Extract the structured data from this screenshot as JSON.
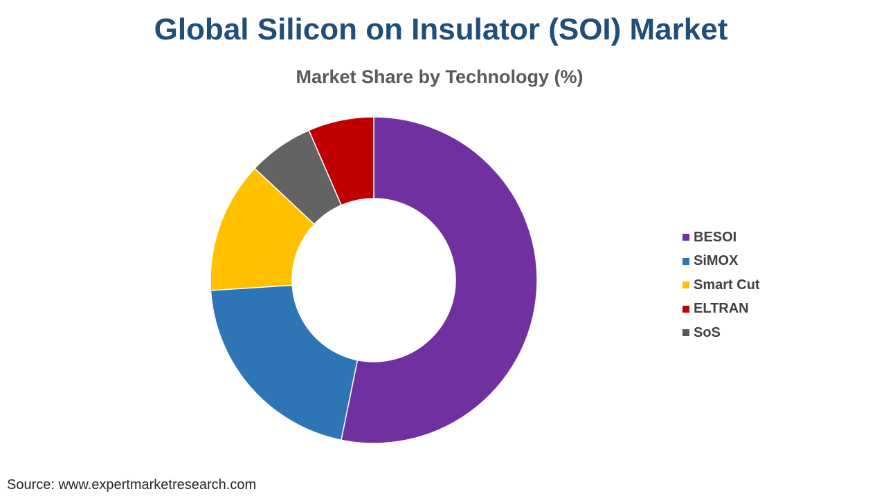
{
  "title": "Global Silicon on Insulator (SOI) Market",
  "source": "Source: www.expertmarketresearch.com",
  "chart_data": {
    "type": "donut",
    "title": "Market Share by Technology (%)",
    "legend_position": "right",
    "legend": [
      {
        "name": "BESOI",
        "color": "#7030a0"
      },
      {
        "name": "SiMOX",
        "color": "#2e75b6"
      },
      {
        "name": "Smart Cut",
        "color": "#ffc000"
      },
      {
        "name": "ELTRAN",
        "color": "#c00000"
      },
      {
        "name": "SoS",
        "color": "#595959"
      }
    ],
    "slices_clockwise_from_top": [
      {
        "name": "BESOI",
        "value": 53.2,
        "color": "#7030a0"
      },
      {
        "name": "SiMOX",
        "value": 20.8,
        "color": "#2e75b6"
      },
      {
        "name": "Smart Cut",
        "value": 13.0,
        "color": "#ffc000"
      },
      {
        "name": "SoS",
        "value": 6.5,
        "color": "#636363"
      },
      {
        "name": "ELTRAN",
        "value": 6.5,
        "color": "#c00000"
      }
    ]
  }
}
